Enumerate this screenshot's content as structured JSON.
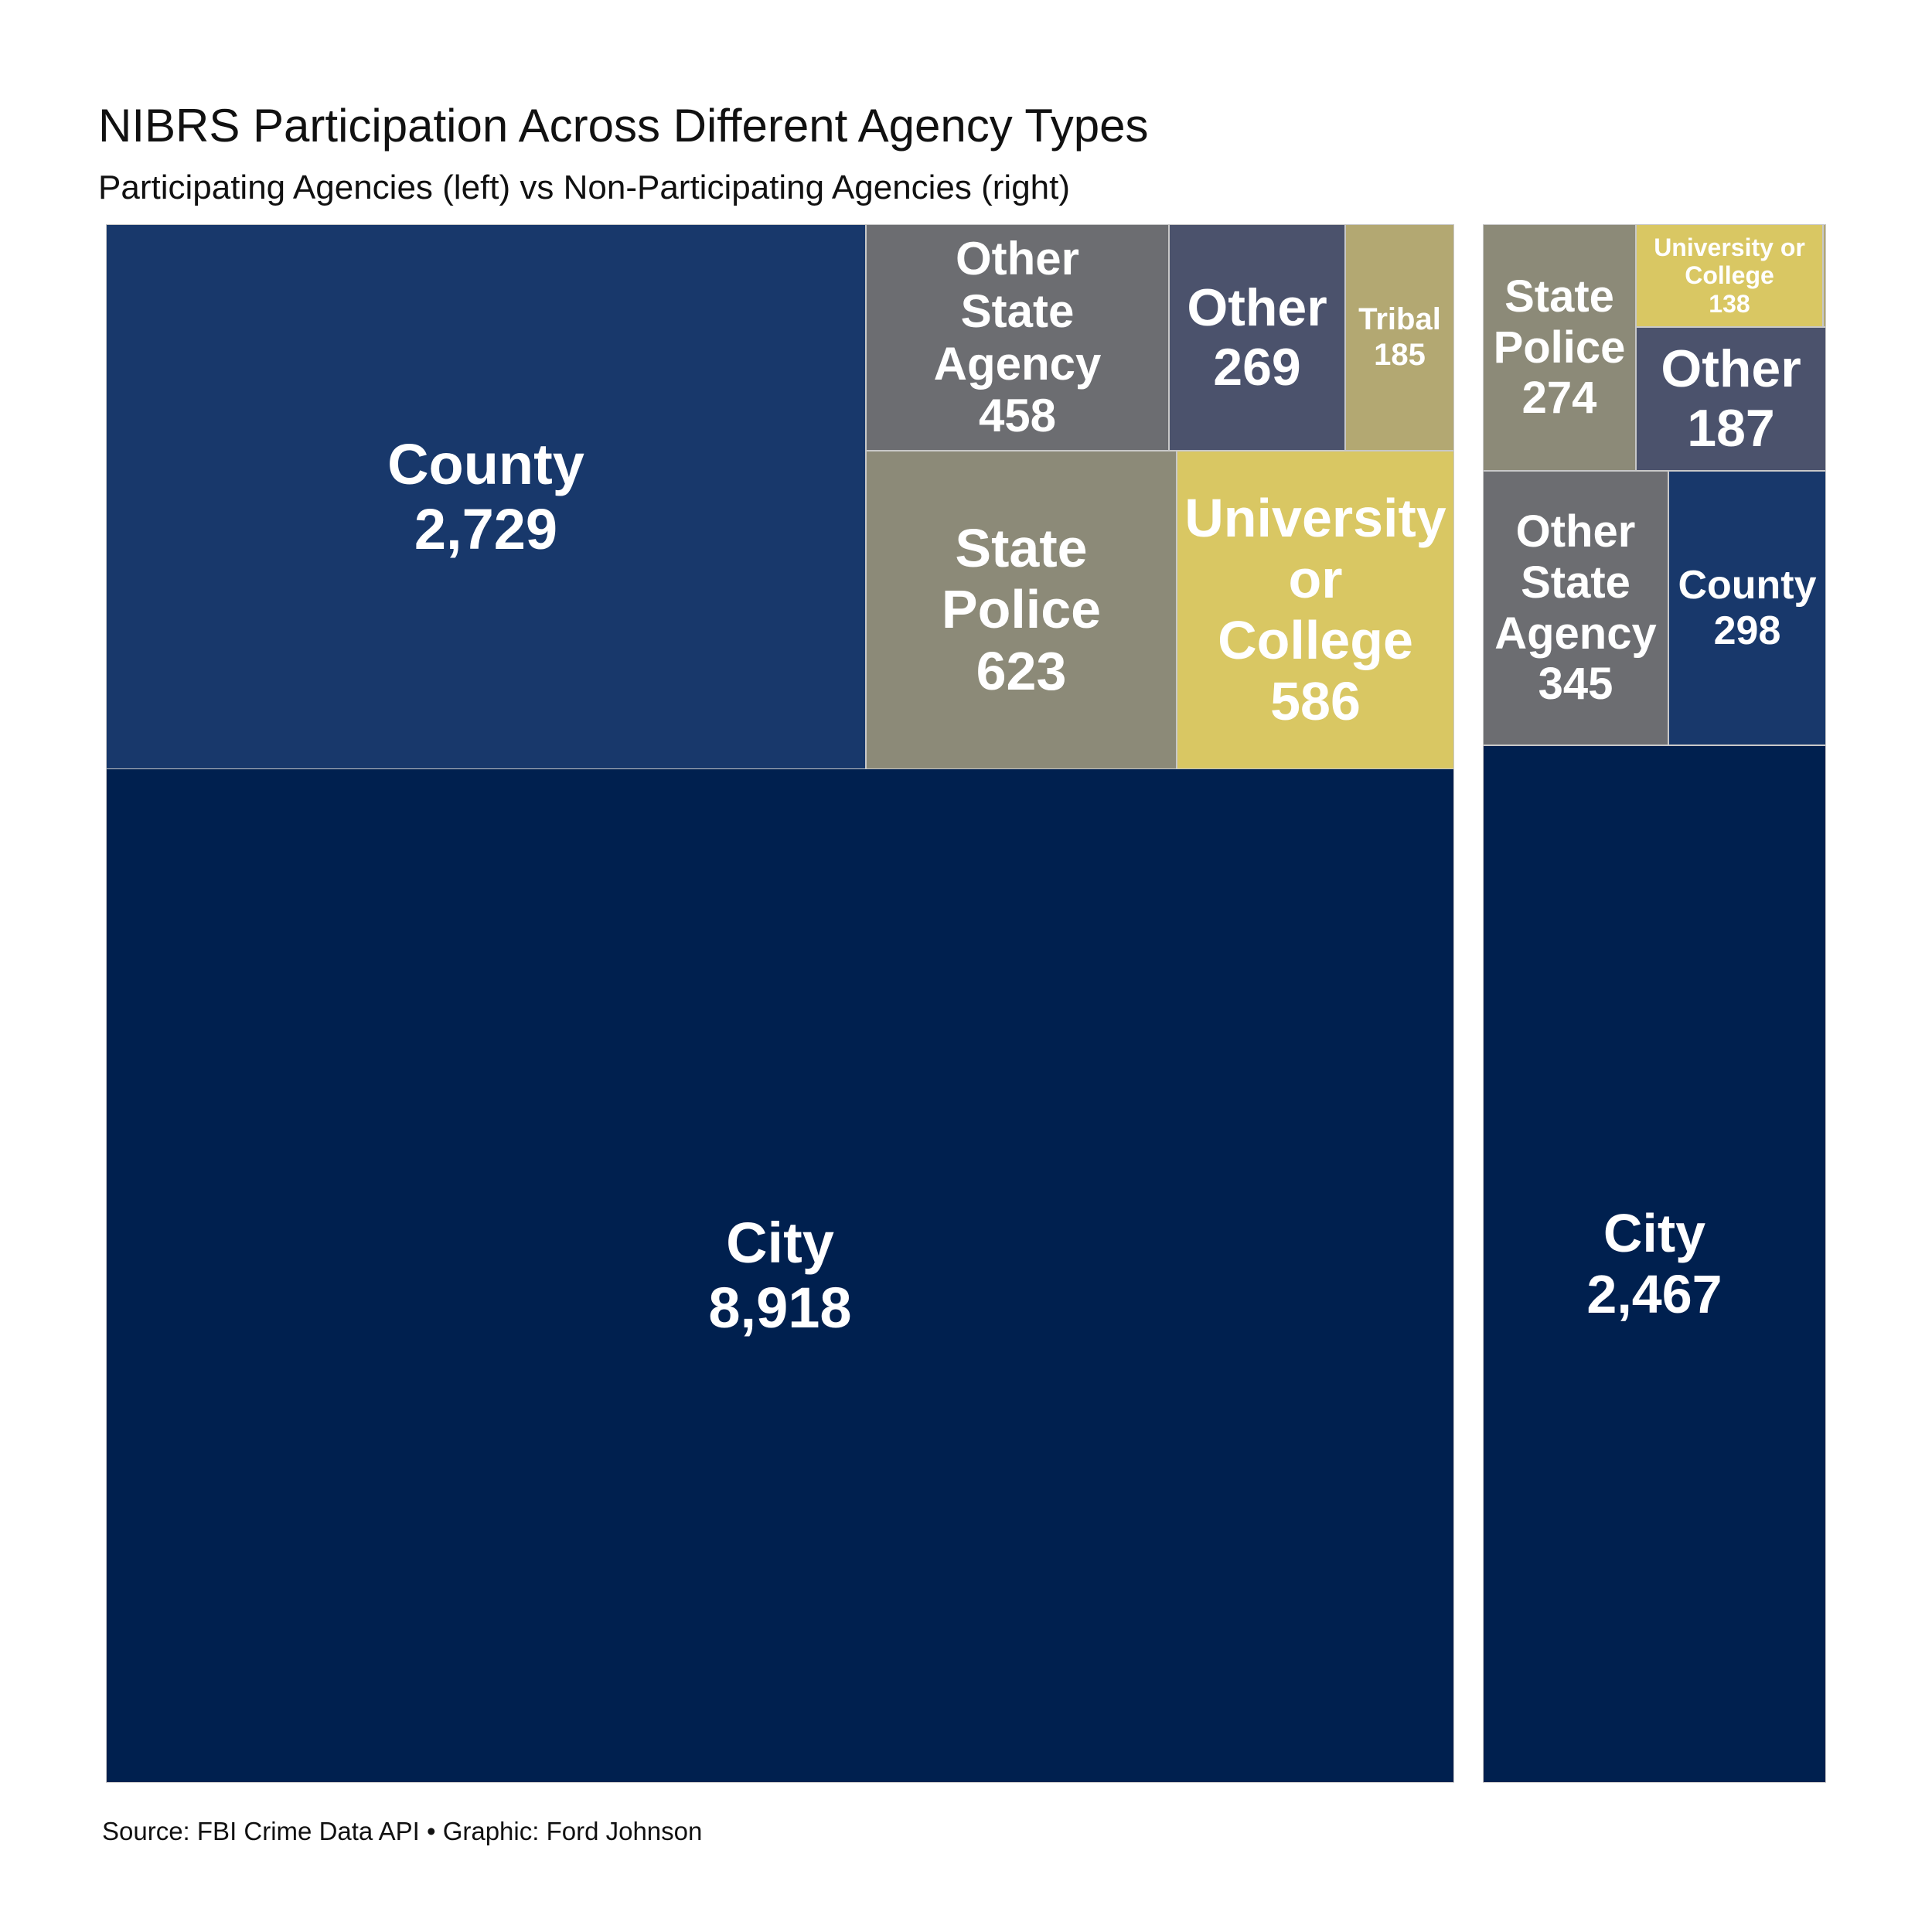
{
  "chart_data": {
    "type": "treemap",
    "title": "NIBRS Participation Across Different Agency Types",
    "subtitle": "Participating Agencies (left) vs Non-Participating Agencies (right)",
    "caption": "Source: FBI Crime Data API • Graphic: Ford Johnson",
    "colors": {
      "City": "#00204f",
      "County": "#18386b",
      "Other State Agency": "#6c6d71",
      "Other": "#4b526c",
      "Tribal": "#b3a872",
      "State Police": "#8c8a78",
      "University or College": "#d9c763"
    },
    "panels": [
      {
        "name": "Participating Agencies",
        "position": "left",
        "cells": [
          {
            "id": "p-city",
            "category": "City",
            "label_lines": [
              "City"
            ],
            "value": 8918,
            "value_label": "8,918"
          },
          {
            "id": "p-county",
            "category": "County",
            "label_lines": [
              "County"
            ],
            "value": 2729,
            "value_label": "2,729"
          },
          {
            "id": "p-state-police",
            "category": "State Police",
            "label_lines": [
              "State",
              "Police"
            ],
            "value": 623,
            "value_label": "623"
          },
          {
            "id": "p-university",
            "category": "University or College",
            "label_lines": [
              "University",
              "or",
              "College"
            ],
            "value": 586,
            "value_label": "586"
          },
          {
            "id": "p-other-state",
            "category": "Other State Agency",
            "label_lines": [
              "Other",
              "State",
              "Agency"
            ],
            "value": 458,
            "value_label": "458"
          },
          {
            "id": "p-other",
            "category": "Other",
            "label_lines": [
              "Other"
            ],
            "value": 269,
            "value_label": "269"
          },
          {
            "id": "p-tribal",
            "category": "Tribal",
            "label_lines": [
              "Tribal"
            ],
            "value": 185,
            "value_label": "185"
          }
        ]
      },
      {
        "name": "Non-Participating Agencies",
        "position": "right",
        "cells": [
          {
            "id": "n-city",
            "category": "City",
            "label_lines": [
              "City"
            ],
            "value": 2467,
            "value_label": "2,467"
          },
          {
            "id": "n-other-state",
            "category": "Other State Agency",
            "label_lines": [
              "Other",
              "State",
              "Agency"
            ],
            "value": 345,
            "value_label": "345"
          },
          {
            "id": "n-county",
            "category": "County",
            "label_lines": [
              "County"
            ],
            "value": 298,
            "value_label": "298"
          },
          {
            "id": "n-state-police",
            "category": "State Police",
            "label_lines": [
              "State",
              "Police"
            ],
            "value": 274,
            "value_label": "274"
          },
          {
            "id": "n-other",
            "category": "Other",
            "label_lines": [
              "Other"
            ],
            "value": 187,
            "value_label": "187"
          },
          {
            "id": "n-university",
            "category": "University or College",
            "label_lines": [
              "University or",
              "College"
            ],
            "value": 138,
            "value_label": "138"
          },
          {
            "id": "n-tribal",
            "category": "Tribal",
            "label_lines": [],
            "value": null,
            "value_label": ""
          }
        ]
      }
    ]
  }
}
